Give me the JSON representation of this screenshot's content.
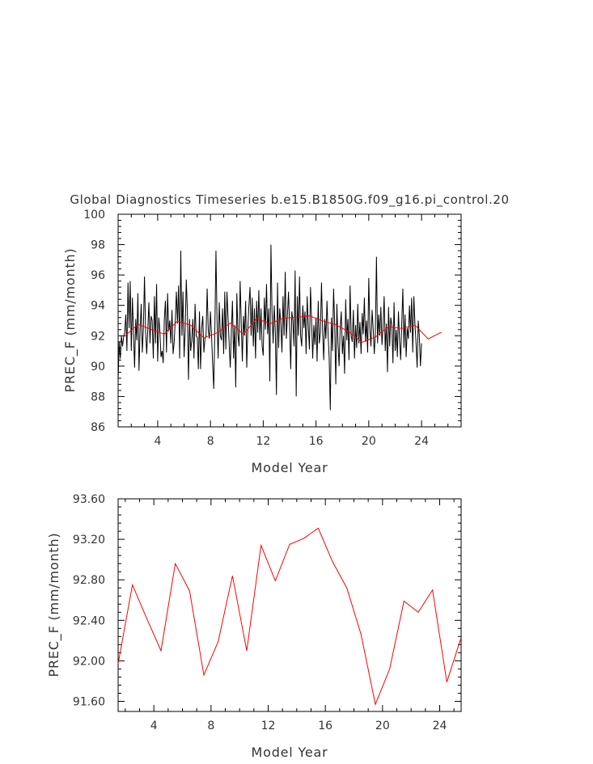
{
  "title": "Global Diagnostics Timeseries b.e15.B1850G.f09_g16.pi_control.20",
  "chart_data": [
    {
      "type": "line",
      "xlabel": "Model Year",
      "ylabel": "PREC_F (mm/month)",
      "xlim": [
        1,
        27
      ],
      "ylim": [
        86,
        100
      ],
      "xticks": [
        "4",
        "8",
        "12",
        "16",
        "20",
        "24"
      ],
      "xtick_values": [
        4,
        8,
        12,
        16,
        20,
        24
      ],
      "yticks": [
        "86",
        "88",
        "90",
        "92",
        "94",
        "96",
        "98",
        "100"
      ],
      "ytick_values": [
        86,
        88,
        90,
        92,
        94,
        96,
        98,
        100
      ],
      "series": [
        {
          "color": "#000000",
          "description_of_values": "monthly values, 12 per year",
          "x_start": 1.0,
          "x_step": 0.08333,
          "values": [
            89.0,
            91.6,
            90.5,
            92.0,
            91.3,
            91.9,
            92.2,
            93.4,
            91.0,
            95.5,
            92.5,
            95.6,
            91.0,
            94.5,
            92.2,
            89.9,
            93.1,
            91.7,
            94.8,
            89.7,
            92.4,
            94.1,
            90.9,
            92.5,
            95.9,
            92.3,
            90.8,
            92.4,
            94.2,
            91.5,
            93.3,
            93.0,
            90.5,
            94.6,
            91.5,
            95.4,
            90.3,
            93.2,
            92.3,
            90.6,
            91.0,
            90.2,
            93.0,
            94.3,
            90.9,
            94.8,
            92.3,
            93.0,
            91.5,
            93.7,
            90.8,
            91.6,
            93.0,
            94.9,
            92.8,
            95.3,
            90.5,
            97.6,
            92.0,
            94.9,
            90.6,
            92.3,
            95.7,
            93.7,
            89.1,
            93.1,
            91.0,
            91.7,
            93.1,
            90.5,
            94.1,
            92.0,
            91.9,
            89.8,
            93.6,
            89.8,
            92.5,
            93.3,
            90.9,
            91.8,
            92.0,
            95.1,
            92.4,
            91.8,
            93.6,
            92.0,
            90.1,
            88.5,
            92.5,
            97.6,
            93.0,
            90.5,
            94.2,
            92.0,
            91.7,
            93.8,
            90.8,
            94.9,
            91.1,
            94.9,
            93.2,
            91.5,
            89.9,
            92.3,
            94.3,
            90.5,
            92.7,
            88.6,
            94.8,
            92.1,
            91.3,
            95.6,
            92.9,
            90.3,
            93.3,
            92.0,
            94.3,
            89.9,
            92.5,
            94.0,
            95.2,
            92.0,
            94.5,
            91.3,
            93.8,
            90.5,
            94.3,
            92.2,
            95.0,
            91.7,
            93.8,
            91.3,
            90.7,
            94.5,
            92.4,
            95.4,
            92.1,
            93.8,
            89.0,
            98.0,
            93.6,
            91.5,
            94.0,
            92.3,
            88.1,
            95.5,
            91.2,
            93.8,
            92.8,
            90.9,
            94.6,
            92.0,
            96.2,
            91.8,
            93.3,
            94.9,
            92.6,
            89.8,
            93.6,
            93.0,
            91.3,
            96.3,
            88.0,
            94.6,
            92.0,
            95.9,
            92.0,
            91.3,
            94.0,
            92.5,
            93.6,
            90.8,
            94.6,
            92.6,
            91.1,
            95.2,
            93.0,
            90.5,
            92.7,
            91.4,
            93.2,
            90.3,
            94.3,
            91.5,
            92.2,
            95.5,
            92.4,
            90.4,
            93.1,
            91.8,
            94.3,
            92.1,
            90.5,
            87.1,
            93.2,
            91.0,
            95.1,
            92.7,
            88.8,
            94.1,
            91.5,
            90.0,
            92.5,
            93.6,
            90.8,
            92.0,
            89.5,
            94.4,
            91.7,
            93.1,
            90.4,
            95.3,
            92.0,
            91.6,
            93.7,
            90.5,
            92.7,
            91.2,
            94.1,
            91.5,
            92.9,
            90.8,
            93.5,
            92.1,
            94.5,
            91.6,
            93.0,
            90.9,
            95.8,
            92.4,
            91.3,
            93.7,
            92.5,
            90.8,
            92.2,
            97.2,
            91.5,
            93.4,
            92.0,
            93.9,
            91.4,
            92.6,
            94.6,
            91.0,
            92.8,
            89.6,
            93.9,
            91.3,
            93.2,
            92.7,
            90.2,
            94.2,
            91.0,
            92.4,
            90.6,
            93.6,
            91.7,
            90.4,
            92.8,
            95.1,
            91.2,
            93.4,
            90.6,
            92.5,
            91.8,
            94.0,
            92.2,
            94.5,
            90.9,
            94.6,
            92.8,
            91.5,
            89.9,
            93.0,
            92.0,
            90.0,
            91.5
          ]
        },
        {
          "color": "#ff0000",
          "description_of_values": "annual means",
          "x": [
            1.5,
            2.5,
            3.5,
            4.5,
            5.5,
            6.5,
            7.5,
            8.5,
            9.5,
            10.5,
            11.5,
            12.5,
            13.5,
            14.5,
            15.5,
            16.5,
            17.5,
            18.5,
            19.5,
            20.5,
            21.5,
            22.5,
            23.5,
            24.5,
            25.5
          ],
          "values": [
            91.97,
            92.75,
            92.42,
            92.1,
            92.96,
            92.69,
            91.86,
            92.19,
            92.84,
            92.1,
            93.14,
            92.79,
            93.15,
            93.21,
            93.31,
            92.98,
            92.72,
            92.26,
            91.57,
            91.92,
            92.59,
            92.48,
            92.7,
            91.79,
            92.23
          ]
        }
      ],
      "grid": false
    },
    {
      "type": "line",
      "xlabel": "Model Year",
      "ylabel": "PREC_F (mm/month)",
      "xlim": [
        1.5,
        25.5
      ],
      "ylim": [
        91.5,
        93.6
      ],
      "xticks": [
        "4",
        "8",
        "12",
        "16",
        "20",
        "24"
      ],
      "xtick_values": [
        4,
        8,
        12,
        16,
        20,
        24
      ],
      "yticks": [
        "91.60",
        "92.00",
        "92.40",
        "92.80",
        "93.20",
        "93.60"
      ],
      "ytick_values": [
        91.6,
        92.0,
        92.4,
        92.8,
        93.2,
        93.6
      ],
      "series": [
        {
          "color": "#ff0000",
          "x": [
            1.5,
            2.5,
            3.5,
            4.5,
            5.5,
            6.5,
            7.5,
            8.5,
            9.5,
            10.5,
            11.5,
            12.5,
            13.5,
            14.5,
            15.5,
            16.5,
            17.5,
            18.5,
            19.5,
            20.5,
            21.5,
            22.5,
            23.5,
            24.5,
            25.5
          ],
          "values": [
            91.97,
            92.75,
            92.42,
            92.1,
            92.96,
            92.69,
            91.86,
            92.19,
            92.84,
            92.1,
            93.14,
            92.79,
            93.15,
            93.21,
            93.31,
            92.98,
            92.72,
            92.26,
            91.57,
            91.92,
            92.59,
            92.48,
            92.7,
            91.79,
            92.23
          ]
        }
      ],
      "grid": false
    }
  ]
}
